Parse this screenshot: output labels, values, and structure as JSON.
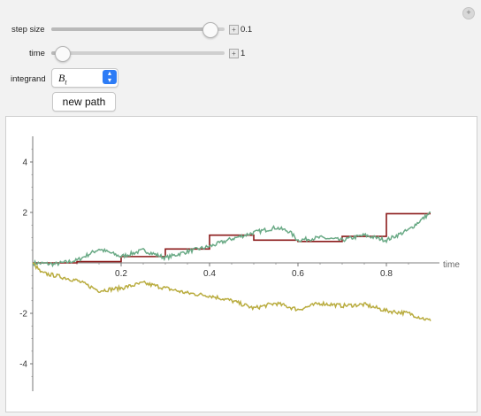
{
  "controls": {
    "step_size": {
      "label": "step size",
      "value": "0.1",
      "fraction": 0.95
    },
    "time": {
      "label": "time",
      "value": "1",
      "fraction": 0.02
    },
    "integrand": {
      "label": "integrand",
      "selected_base": "B",
      "selected_sub": "t"
    },
    "new_path_label": "new path",
    "corner_icon": "plus-circle-icon"
  },
  "chart_data": {
    "type": "line",
    "xlabel": "time",
    "ylabel": "",
    "xlim": [
      0,
      0.9
    ],
    "ylim": [
      -5,
      5
    ],
    "x_ticks": [
      "0.2",
      "0.4",
      "0.6",
      "0.8"
    ],
    "y_ticks": [
      "4",
      "2",
      "-2",
      "-4"
    ],
    "colors": {
      "step": "#8b1a1a",
      "green": "#6aaa86",
      "yellow": "#b9ac3f"
    },
    "series": [
      {
        "style": "step",
        "x": [
          0,
          0.1,
          0.2,
          0.3,
          0.4,
          0.5,
          0.6,
          0.7,
          0.8,
          0.9
        ],
        "values": [
          0,
          0.05,
          0.25,
          0.55,
          1.1,
          0.9,
          0.85,
          1.05,
          1.95,
          1.95
        ]
      },
      {
        "style": "noisy",
        "x": [
          0,
          0.05,
          0.1,
          0.15,
          0.2,
          0.25,
          0.3,
          0.35,
          0.4,
          0.45,
          0.5,
          0.55,
          0.58,
          0.6,
          0.65,
          0.7,
          0.75,
          0.8,
          0.85,
          0.9
        ],
        "values": [
          0,
          -0.05,
          0.1,
          0.55,
          0.25,
          0.5,
          0.2,
          0.45,
          0.65,
          0.95,
          1.2,
          1.4,
          1.25,
          0.9,
          1.0,
          0.9,
          1.1,
          0.9,
          1.3,
          2.0
        ]
      },
      {
        "style": "noisy",
        "x": [
          0,
          0.02,
          0.05,
          0.1,
          0.15,
          0.2,
          0.25,
          0.3,
          0.35,
          0.4,
          0.45,
          0.5,
          0.55,
          0.6,
          0.65,
          0.7,
          0.75,
          0.8,
          0.85,
          0.9
        ],
        "values": [
          0,
          -0.4,
          -0.5,
          -0.7,
          -1.1,
          -1.0,
          -0.8,
          -1.0,
          -1.2,
          -1.3,
          -1.5,
          -1.8,
          -1.6,
          -1.85,
          -1.6,
          -1.7,
          -1.65,
          -1.9,
          -2.0,
          -2.3
        ]
      }
    ]
  }
}
